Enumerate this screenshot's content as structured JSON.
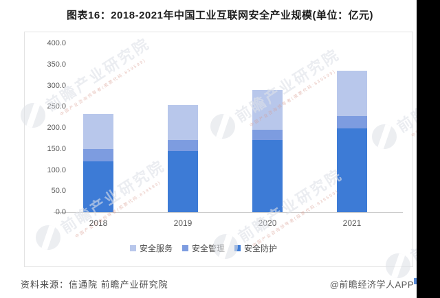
{
  "page": {
    "title": "图表16：2018-2021年中国工业互联网安全产业规模(单位：亿元)",
    "source_note": "资料来源：信通院 前瞻产业研究院",
    "credit": "@前瞻经济学人APP"
  },
  "watermark": {
    "brand": "前瞻产业研究院",
    "sub": "中国产业咨询领导者(股票代码:839599)"
  },
  "colors": {
    "bar_dark": "#3D7BD6",
    "bar_medium": "#7D9CE0",
    "bar_light": "#B8C7EB",
    "axis_line": "#CCCCCC",
    "chart_border": "#E3E3E3",
    "tick_text": "#595959"
  },
  "chart_data": {
    "type": "bar",
    "stacked": true,
    "title": "图表16：2018-2021年中国工业互联网安全产业规模(单位：亿元)",
    "unit": "亿元",
    "categories": [
      "2018",
      "2019",
      "2020",
      "2021"
    ],
    "series": [
      {
        "name": "安全防护",
        "color": "#3D7BD6",
        "values": [
          120.0,
          145.0,
          170.0,
          198.0
        ]
      },
      {
        "name": "安全管理",
        "color": "#7D9CE0",
        "values": [
          30.0,
          25.0,
          25.0,
          29.0
        ]
      },
      {
        "name": "安全服务",
        "color": "#B8C7EB",
        "values": [
          82.0,
          83.0,
          95.0,
          108.0
        ]
      }
    ],
    "totals": [
      232.0,
      253.0,
      290.0,
      335.0
    ],
    "legend": [
      "安全服务",
      "安全管理",
      "安全防护"
    ],
    "legend_position": "bottom",
    "ylim": [
      0,
      400
    ],
    "yticks": [
      "0.0",
      "50.0",
      "100.0",
      "150.0",
      "200.0",
      "250.0",
      "300.0",
      "350.0",
      "400.0"
    ],
    "grid": false,
    "xlabel": "",
    "ylabel": ""
  }
}
